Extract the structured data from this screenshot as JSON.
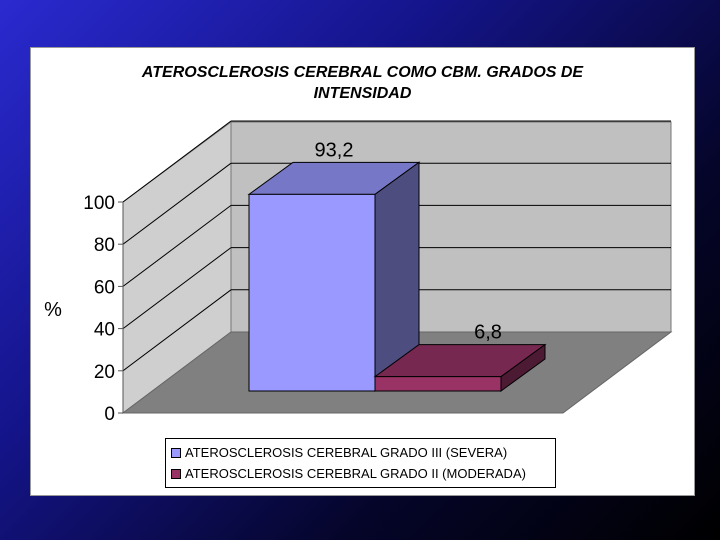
{
  "chart_data": {
    "type": "bar",
    "title_lines": [
      "ATEROSCLEROSIS CEREBRAL COMO CBM. GRADOS DE",
      "INTENSIDAD"
    ],
    "ylabel": "%",
    "ylim": [
      0,
      100
    ],
    "yticks": [
      0,
      20,
      40,
      60,
      80,
      100
    ],
    "series": [
      {
        "name": "ATEROSCLEROSIS CEREBRAL GRADO III (SEVERA)",
        "value": 93.2,
        "label": "93,2",
        "color": "#9999ff"
      },
      {
        "name": "ATEROSCLEROSIS CEREBRAL GRADO II (MODERADA)",
        "value": 6.8,
        "label": "6,8",
        "color": "#993366"
      }
    ],
    "grid": true,
    "legend_position": "bottom",
    "style": "3d"
  }
}
